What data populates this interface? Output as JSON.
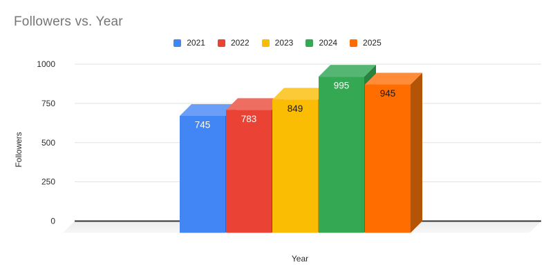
{
  "chart_data": {
    "type": "bar",
    "variant": "3d-column",
    "title": "Followers vs. Year",
    "xlabel": "Year",
    "ylabel": "Followers",
    "ylim": [
      0,
      1000
    ],
    "yticks": [
      0,
      250,
      500,
      750,
      1000
    ],
    "grid": true,
    "legend_position": "top-center",
    "background_color": "#ffffff",
    "floor_color": "#f0f0f0",
    "baseline_color": "#333333",
    "gridline_color": "#e0e0e0",
    "title_color": "#757575",
    "series": [
      {
        "name": "2021",
        "value": 745,
        "color": "#4285F4",
        "top_color": "#6B9EF6",
        "side_color": "#2A66C9",
        "label_color": "#FFFFFF"
      },
      {
        "name": "2022",
        "value": 783,
        "color": "#EA4335",
        "top_color": "#EE6E61",
        "side_color": "#B52A1D",
        "label_color": "#FFFFFF"
      },
      {
        "name": "2023",
        "value": 849,
        "color": "#FBBC04",
        "top_color": "#FCCA36",
        "side_color": "#CC9902",
        "label_color": "#1A1A1A"
      },
      {
        "name": "2024",
        "value": 995,
        "color": "#34A853",
        "top_color": "#55B572",
        "side_color": "#28833F",
        "label_color": "#FFFFFF"
      },
      {
        "name": "2025",
        "value": 945,
        "color": "#FF6D01",
        "top_color": "#FF8C38",
        "side_color": "#B35407",
        "label_color": "#1A1A1A"
      }
    ]
  }
}
